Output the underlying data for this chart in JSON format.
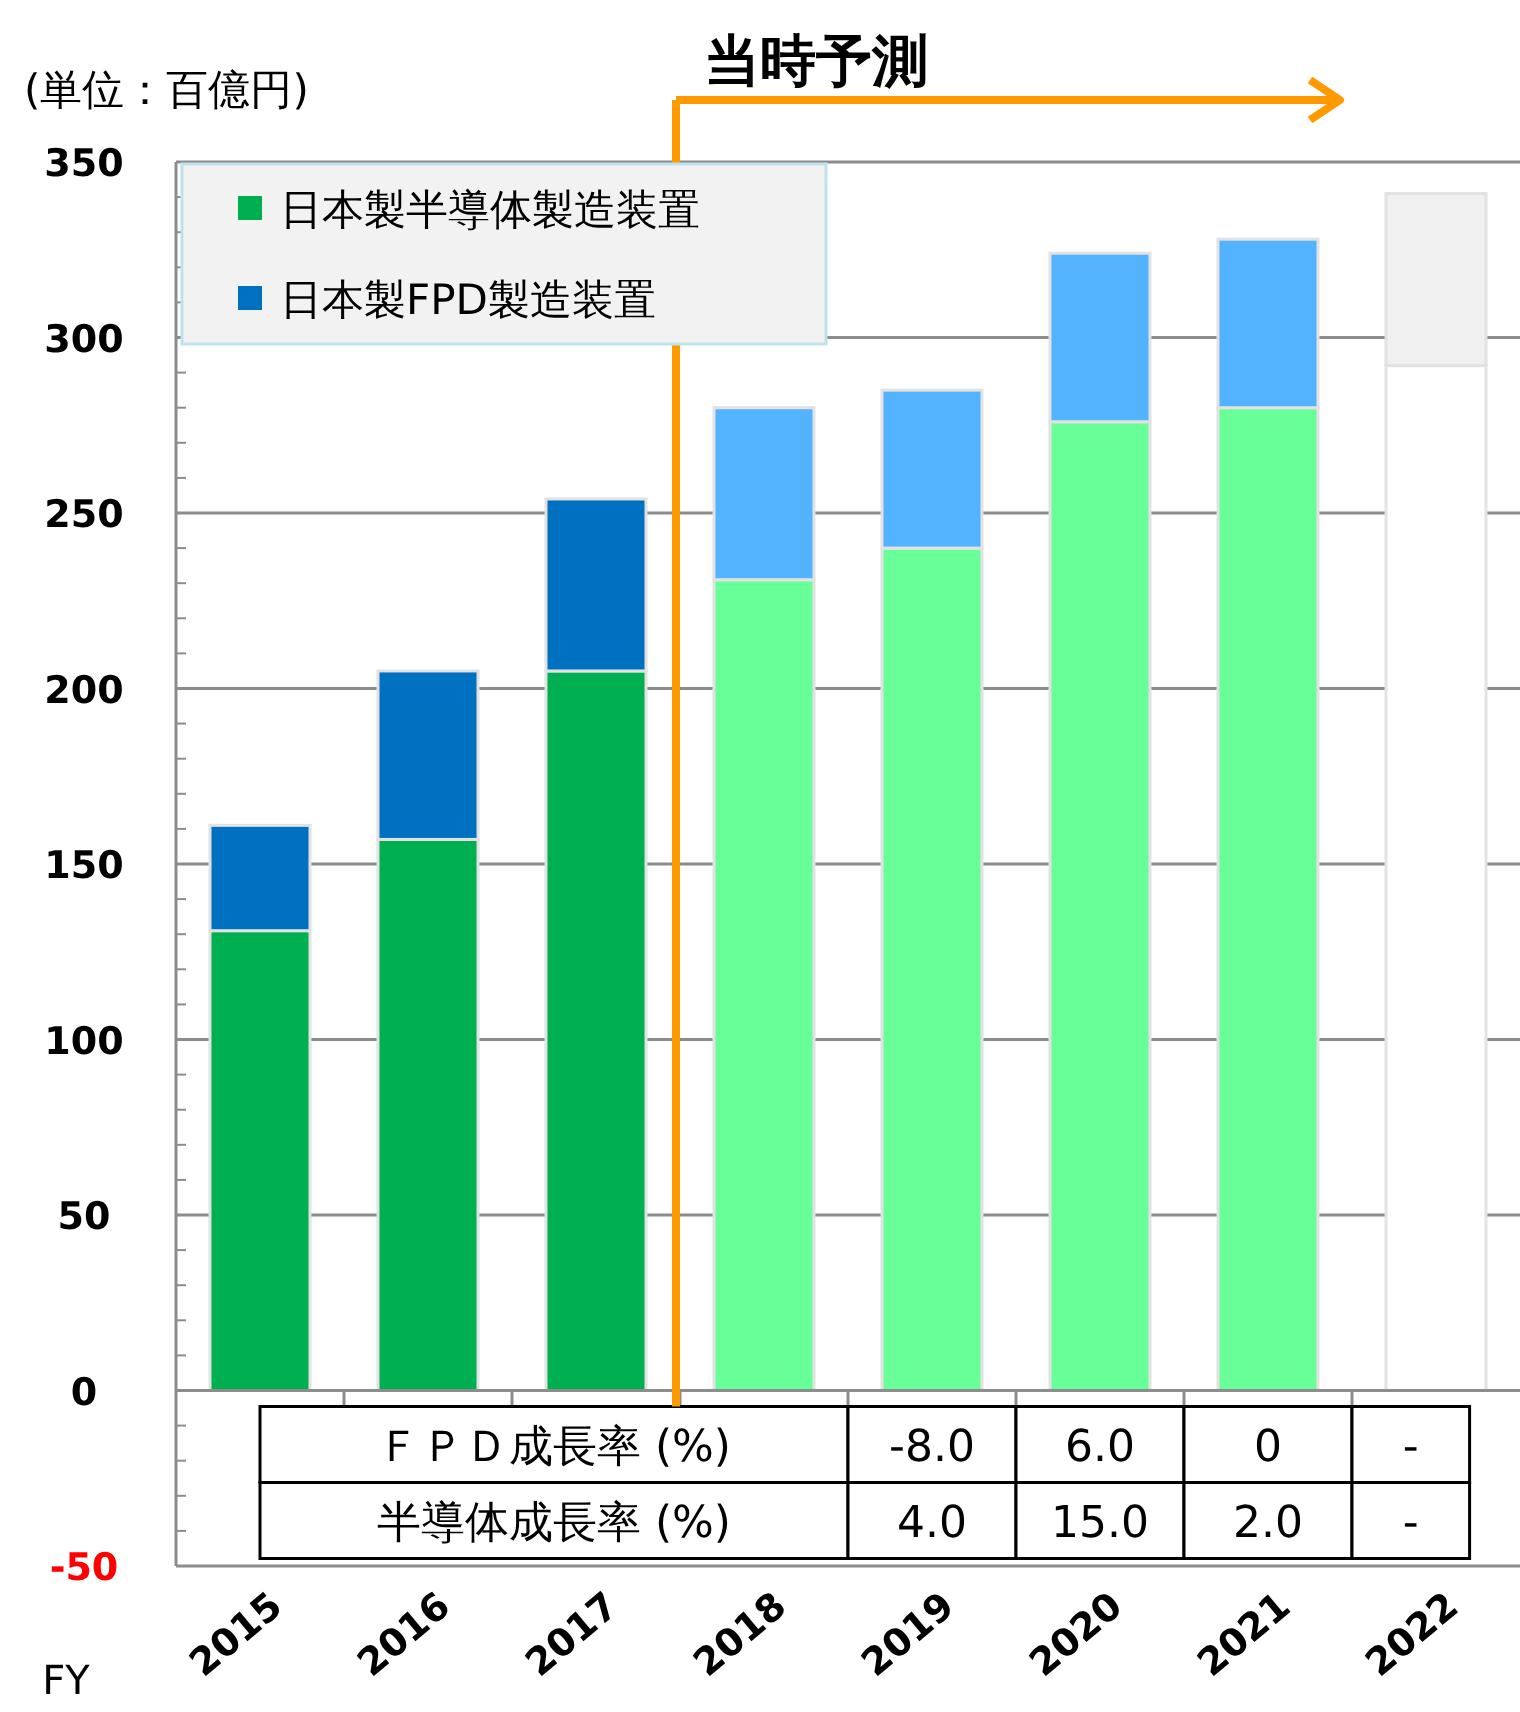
{
  "chart_data": {
    "type": "bar",
    "stacked": true,
    "ylabel": "(単位：百億円)",
    "xlabel": "FY",
    "categories": [
      "2015",
      "2016",
      "2017",
      "2018",
      "2019",
      "2020",
      "2021",
      "2022"
    ],
    "series": [
      {
        "name": "日本製半導体製造装置",
        "color": "#00b050",
        "colors": [
          "#00b050",
          "#00b050",
          "#00b050",
          "#69ff98",
          "#69ff98",
          "#69ff98",
          "#69ff98",
          "#ffffff"
        ],
        "values": [
          131,
          157,
          205,
          231,
          240,
          276,
          280,
          292
        ]
      },
      {
        "name": "日本製FPD製造装置",
        "color": "#0070c0",
        "colors": [
          "#0070c0",
          "#0070c0",
          "#0070c0",
          "#53b3ff",
          "#53b3ff",
          "#53b3ff",
          "#53b3ff",
          "#f0f0f0"
        ],
        "values": [
          30,
          48,
          49,
          49,
          45,
          48,
          48,
          49
        ]
      }
    ],
    "ylim": [
      -50,
      350
    ],
    "yticks": [
      -50,
      0,
      50,
      100,
      150,
      200,
      250,
      300,
      350
    ],
    "grid": "y",
    "legend": "top left",
    "ref_lines": [
      {
        "axis": "x",
        "value": "2018",
        "label": "当時予測",
        "color": "#ff9900"
      }
    ],
    "annotations": [
      "ＦＰＤ成長率 (%)",
      "-8.0",
      "6.0",
      "0",
      "-",
      "半導体成長率 (%)",
      "4.0",
      "15.0",
      "2.0",
      "-"
    ]
  }
}
